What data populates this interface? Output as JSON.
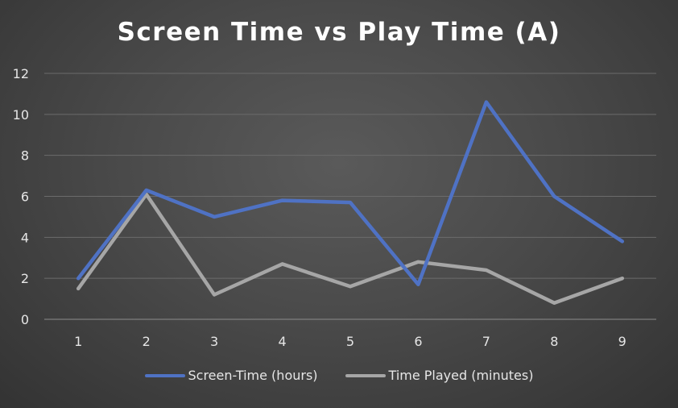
{
  "chart_data": {
    "type": "line",
    "title": "Screen Time vs Play Time (A)",
    "xlabel": "",
    "ylabel": "",
    "x": [
      1,
      2,
      3,
      4,
      5,
      6,
      7,
      8,
      9
    ],
    "x_tick_labels": [
      "1",
      "2",
      "3",
      "4",
      "5",
      "6",
      "7",
      "8",
      "9"
    ],
    "ylim": [
      0,
      12
    ],
    "y_ticks": [
      0,
      2,
      4,
      6,
      8,
      10,
      12
    ],
    "y_tick_labels": [
      "0",
      "2",
      "4",
      "6",
      "8",
      "10",
      "12"
    ],
    "grid": "horizontal",
    "legend_position": "bottom",
    "series": [
      {
        "name": "Screen-Time (hours)",
        "color": "#4f72c4",
        "values": [
          2.0,
          6.3,
          5.0,
          5.8,
          5.7,
          1.7,
          10.6,
          6.0,
          3.8
        ]
      },
      {
        "name": "Time Played (minutes)",
        "color": "#a6a6a6",
        "values": [
          1.5,
          6.1,
          1.2,
          2.7,
          1.6,
          2.8,
          2.4,
          0.8,
          2.0
        ]
      }
    ]
  }
}
